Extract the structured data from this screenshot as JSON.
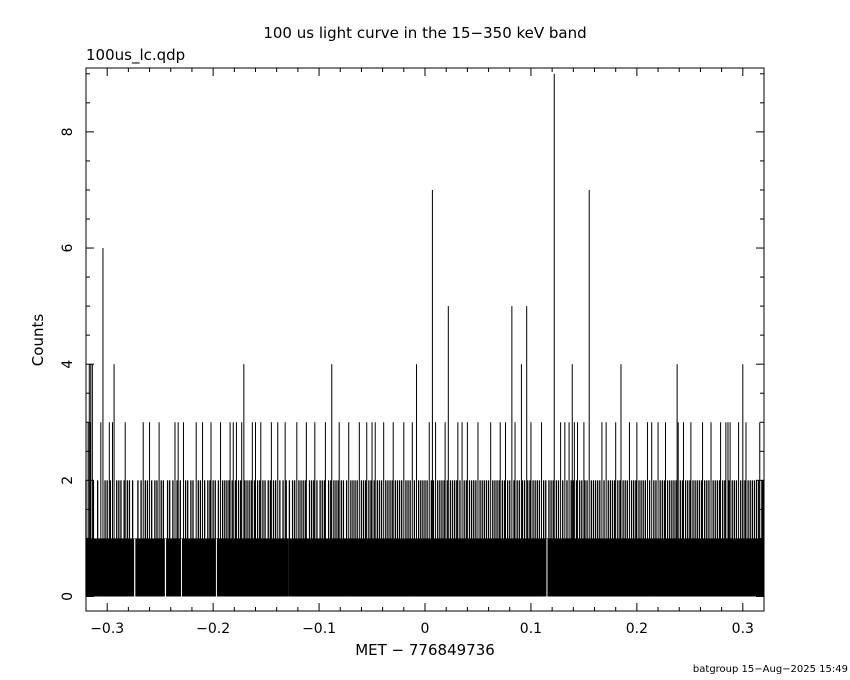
{
  "header": {
    "title": "100 us light curve in the 15−350 keV band",
    "file_label": "100us_lc.qdp"
  },
  "footer": {
    "credit": "batgroup 15−Aug−2025 15:49"
  },
  "chart_data": {
    "type": "bar",
    "title": "100 us light curve in the 15−350 keV band",
    "subtitle": "100us_lc.qdp",
    "xlabel": "MET − 776849736",
    "ylabel": "Counts",
    "xlim": [
      -0.32,
      0.32
    ],
    "ylim": [
      -0.25,
      9.1
    ],
    "grid": false,
    "bin_width": 0.0001,
    "baseline_counts": 1,
    "x_ticks": [
      {
        "value": -0.3,
        "label": "−0.3"
      },
      {
        "value": -0.2,
        "label": "−0.2"
      },
      {
        "value": -0.1,
        "label": "−0.1"
      },
      {
        "value": 0,
        "label": "0"
      },
      {
        "value": 0.1,
        "label": "0.1"
      },
      {
        "value": 0.2,
        "label": "0.2"
      },
      {
        "value": 0.3,
        "label": "0.3"
      }
    ],
    "y_ticks": [
      {
        "value": 0,
        "label": "0"
      },
      {
        "value": 2,
        "label": "2"
      },
      {
        "value": 4,
        "label": "4"
      },
      {
        "value": 6,
        "label": "6"
      },
      {
        "value": 8,
        "label": "8"
      }
    ],
    "zero_count_bins": [
      -0.274,
      -0.245,
      -0.23,
      -0.197,
      -0.128,
      0.115
    ],
    "peaks": [
      {
        "x": -0.3169,
        "y": 4
      },
      {
        "x": -0.3155,
        "y": 4
      },
      {
        "x": -0.314,
        "y": 4
      },
      {
        "x": -0.304,
        "y": 6
      },
      {
        "x": -0.2935,
        "y": 4
      },
      {
        "x": -0.171,
        "y": 4
      },
      {
        "x": -0.088,
        "y": 4
      },
      {
        "x": -0.008,
        "y": 4
      },
      {
        "x": 0.007,
        "y": 7
      },
      {
        "x": 0.022,
        "y": 5
      },
      {
        "x": 0.082,
        "y": 5
      },
      {
        "x": 0.091,
        "y": 4
      },
      {
        "x": 0.096,
        "y": 5
      },
      {
        "x": 0.122,
        "y": 9
      },
      {
        "x": 0.139,
        "y": 4
      },
      {
        "x": 0.155,
        "y": 7
      },
      {
        "x": 0.185,
        "y": 4
      },
      {
        "x": 0.238,
        "y": 4
      },
      {
        "x": 0.3,
        "y": 4
      }
    ],
    "three_count_bins": [
      -0.318,
      -0.316,
      -0.306,
      -0.298,
      -0.295,
      -0.283,
      -0.266,
      -0.26,
      -0.251,
      -0.236,
      -0.233,
      -0.228,
      -0.216,
      -0.21,
      -0.202,
      -0.193,
      -0.184,
      -0.181,
      -0.178,
      -0.173,
      -0.163,
      -0.16,
      -0.155,
      -0.145,
      -0.139,
      -0.132,
      -0.121,
      -0.112,
      -0.104,
      -0.094,
      -0.081,
      -0.072,
      -0.062,
      -0.055,
      -0.05,
      -0.047,
      -0.039,
      -0.03,
      -0.02,
      -0.012,
      0.004,
      0.01,
      0.019,
      0.031,
      0.035,
      0.04,
      0.05,
      0.062,
      0.071,
      0.076,
      0.085,
      0.1,
      0.11,
      0.128,
      0.132,
      0.136,
      0.141,
      0.144,
      0.15,
      0.167,
      0.171,
      0.18,
      0.193,
      0.2,
      0.21,
      0.214,
      0.22,
      0.227,
      0.239,
      0.244,
      0.251,
      0.262,
      0.27,
      0.279,
      0.284,
      0.286,
      0.288,
      0.296,
      0.303,
      0.316
    ],
    "two_count_bins": [
      -0.32,
      -0.313,
      -0.309,
      -0.302,
      -0.3,
      -0.297,
      -0.291,
      -0.289,
      -0.287,
      -0.284,
      -0.281,
      -0.279,
      -0.276,
      -0.271,
      -0.268,
      -0.264,
      -0.262,
      -0.258,
      -0.255,
      -0.253,
      -0.249,
      -0.247,
      -0.243,
      -0.241,
      -0.238,
      -0.234,
      -0.231,
      -0.226,
      -0.224,
      -0.221,
      -0.219,
      -0.214,
      -0.212,
      -0.208,
      -0.205,
      -0.203,
      -0.2,
      -0.198,
      -0.195,
      -0.191,
      -0.189,
      -0.187,
      -0.185,
      -0.182,
      -0.179,
      -0.176,
      -0.174,
      -0.17,
      -0.168,
      -0.166,
      -0.164,
      -0.161,
      -0.158,
      -0.156,
      -0.153,
      -0.151,
      -0.148,
      -0.146,
      -0.143,
      -0.141,
      -0.137,
      -0.134,
      -0.131,
      -0.128,
      -0.125,
      -0.123,
      -0.119,
      -0.117,
      -0.115,
      -0.113,
      -0.109,
      -0.107,
      -0.105,
      -0.102,
      -0.099,
      -0.097,
      -0.095,
      -0.091,
      -0.089,
      -0.086,
      -0.084,
      -0.082,
      -0.079,
      -0.077,
      -0.074,
      -0.07,
      -0.068,
      -0.066,
      -0.064,
      -0.06,
      -0.058,
      -0.056,
      -0.053,
      -0.051,
      -0.048,
      -0.045,
      -0.043,
      -0.041,
      -0.037,
      -0.035,
      -0.033,
      -0.031,
      -0.028,
      -0.026,
      -0.024,
      -0.022,
      -0.018,
      -0.016,
      -0.014,
      -0.01,
      -0.006,
      -0.004,
      -0.002,
      0.0,
      0.002,
      0.006,
      0.008,
      0.012,
      0.014,
      0.016,
      0.018,
      0.021,
      0.024,
      0.026,
      0.028,
      0.03,
      0.033,
      0.037,
      0.039,
      0.042,
      0.044,
      0.046,
      0.048,
      0.052,
      0.054,
      0.056,
      0.058,
      0.06,
      0.064,
      0.066,
      0.068,
      0.07,
      0.073,
      0.075,
      0.078,
      0.08,
      0.084,
      0.087,
      0.089,
      0.092,
      0.094,
      0.097,
      0.099,
      0.102,
      0.104,
      0.106,
      0.108,
      0.112,
      0.114,
      0.117,
      0.119,
      0.121,
      0.124,
      0.126,
      0.13,
      0.134,
      0.138,
      0.14,
      0.143,
      0.146,
      0.148,
      0.151,
      0.153,
      0.157,
      0.159,
      0.161,
      0.163,
      0.165,
      0.169,
      0.173,
      0.175,
      0.177,
      0.179,
      0.182,
      0.184,
      0.187,
      0.189,
      0.191,
      0.195,
      0.197,
      0.199,
      0.202,
      0.204,
      0.206,
      0.208,
      0.212,
      0.216,
      0.218,
      0.222,
      0.224,
      0.226,
      0.229,
      0.231,
      0.233,
      0.235,
      0.237,
      0.241,
      0.243,
      0.246,
      0.248,
      0.25,
      0.253,
      0.255,
      0.257,
      0.259,
      0.261,
      0.264,
      0.266,
      0.268,
      0.272,
      0.274,
      0.276,
      0.278,
      0.281,
      0.283,
      0.287,
      0.29,
      0.292,
      0.294,
      0.298,
      0.3,
      0.302,
      0.305,
      0.307,
      0.309,
      0.311,
      0.313,
      0.315,
      0.318,
      0.319
    ]
  }
}
